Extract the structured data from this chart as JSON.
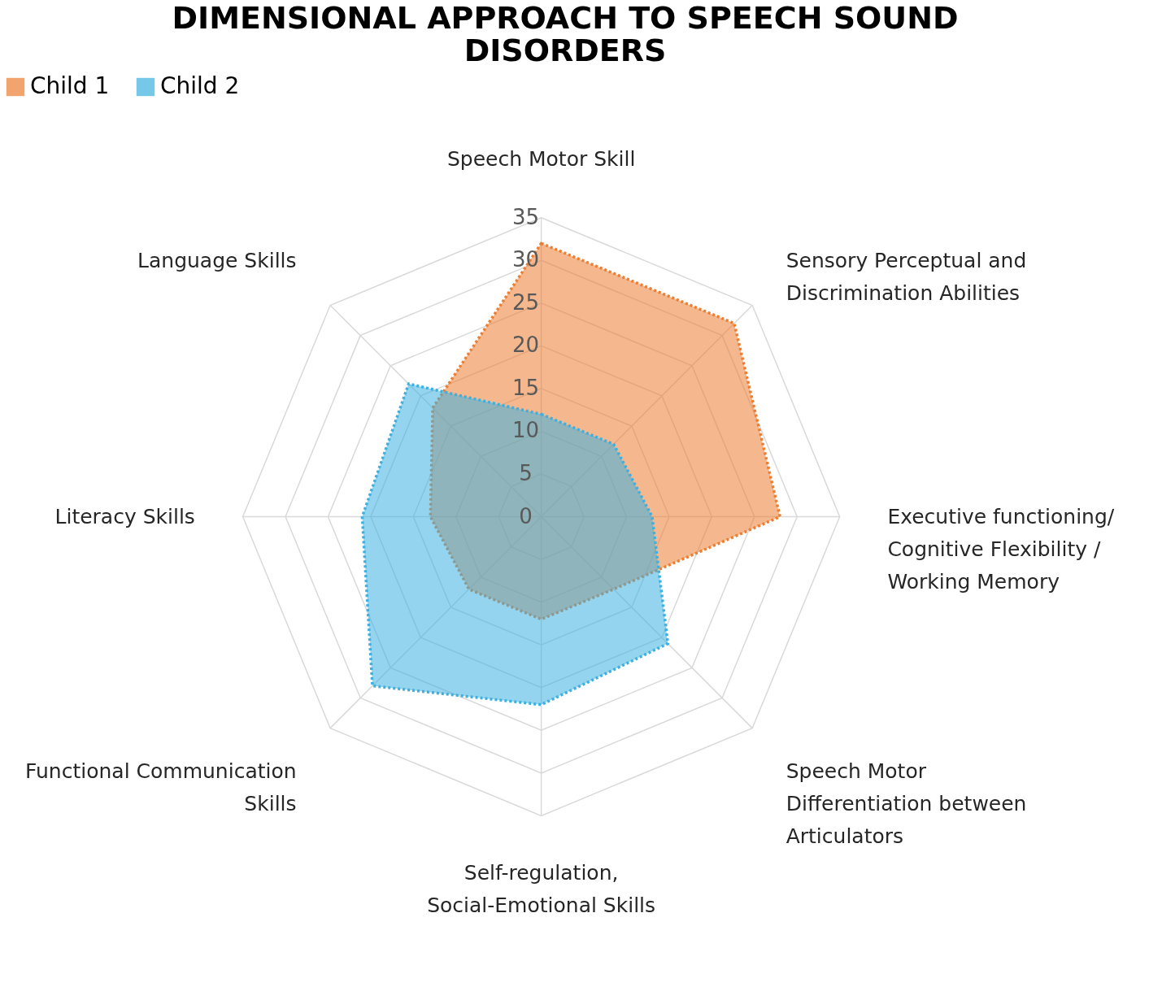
{
  "chart_data": {
    "type": "radar",
    "title": "DIMENSIONAL APPROACH TO SPEECH SOUND DISORDERS",
    "categories": [
      "Speech Motor Skill",
      "Sensory Perceptual and Discrimination Abilities",
      "Executive functioning/ Cognitive Flexibility / Working Memory",
      "Speech Motor Differentiation between Articulators",
      "Self-regulation, Social-Emotional Skills",
      "Functional Communication Skills",
      "Literacy Skills",
      "Language Skills"
    ],
    "series": [
      {
        "name": "Child 1",
        "color": "#ed7d31",
        "values": [
          32,
          32,
          28,
          12,
          12,
          12,
          13,
          18
        ]
      },
      {
        "name": "Child 2",
        "color": "#3cb0e0",
        "values": [
          12,
          12,
          13,
          21,
          22,
          28,
          21,
          22
        ]
      }
    ],
    "ylim": [
      0,
      35
    ],
    "yticks": [
      0,
      5,
      10,
      15,
      20,
      25,
      30,
      35
    ],
    "grid": true,
    "legend": "top",
    "line_style": "dotted",
    "marker": "none"
  }
}
